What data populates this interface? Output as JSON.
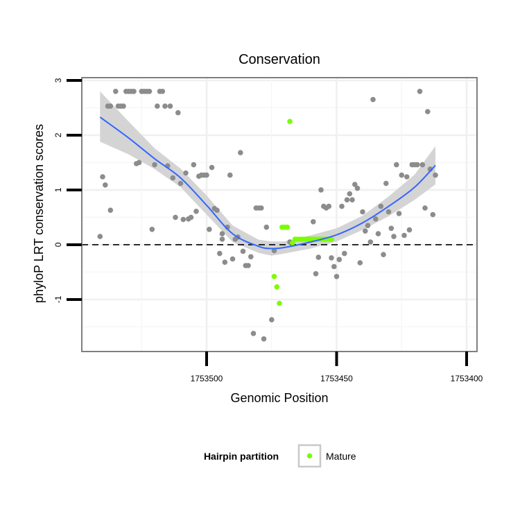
{
  "chart_data": {
    "type": "scatter",
    "title": "Conservation",
    "xlabel": "Genomic Position",
    "ylabel": "phyloP LRT conservation scores",
    "x_reversed": true,
    "xlim": [
      1753548,
      1753396
    ],
    "ylim": [
      -1.95,
      3.05
    ],
    "x_ticks": [
      {
        "value": 1753500,
        "label": "1753500"
      },
      {
        "value": 1753450,
        "label": "1753450"
      },
      {
        "value": 1753400,
        "label": "1753400"
      }
    ],
    "y_ticks": [
      {
        "value": 3,
        "label": "3"
      },
      {
        "value": 2,
        "label": "2"
      },
      {
        "value": 1,
        "label": "1"
      },
      {
        "value": 0,
        "label": "0"
      },
      {
        "value": -1,
        "label": "-1"
      }
    ],
    "grid": true,
    "reference_line": {
      "y": 0,
      "style": "dashed"
    },
    "legend": {
      "title": "Hairpin partition",
      "position": "bottom",
      "entries": [
        {
          "label": "Mature",
          "color": "#7cfc00"
        }
      ]
    },
    "colors": {
      "other": "#8c8c8c",
      "mature": "#7cfc00",
      "smooth": "#3366ff",
      "ribbon": "#d4d4d4",
      "panel_border": "#7f7f7f"
    },
    "series": [
      {
        "color": "#8c8c8c",
        "points": [
          [
            1753541,
            0.15
          ],
          [
            1753540,
            1.24
          ],
          [
            1753539,
            1.09
          ],
          [
            1753538,
            2.53
          ],
          [
            1753537,
            0.63
          ],
          [
            1753537,
            2.53
          ],
          [
            1753535,
            2.8
          ],
          [
            1753534,
            2.53
          ],
          [
            1753533,
            2.53
          ],
          [
            1753532,
            2.53
          ],
          [
            1753531,
            2.8
          ],
          [
            1753530,
            2.8
          ],
          [
            1753529,
            2.8
          ],
          [
            1753528,
            2.8
          ],
          [
            1753527,
            1.48
          ],
          [
            1753526,
            1.5
          ],
          [
            1753525,
            2.8
          ],
          [
            1753524,
            2.8
          ],
          [
            1753523,
            2.8
          ],
          [
            1753522,
            2.8
          ],
          [
            1753521,
            0.28
          ],
          [
            1753520,
            1.46
          ],
          [
            1753519,
            2.53
          ],
          [
            1753518,
            2.8
          ],
          [
            1753517,
            2.8
          ],
          [
            1753516,
            2.53
          ],
          [
            1753515,
            1.44
          ],
          [
            1753514,
            2.53
          ],
          [
            1753513,
            1.22
          ],
          [
            1753512,
            0.5
          ],
          [
            1753511,
            2.41
          ],
          [
            1753510,
            1.12
          ],
          [
            1753509,
            0.46
          ],
          [
            1753508,
            1.31
          ],
          [
            1753507,
            0.47
          ],
          [
            1753506,
            0.5
          ],
          [
            1753505,
            1.46
          ],
          [
            1753504,
            0.61
          ],
          [
            1753503,
            1.25
          ],
          [
            1753502,
            1.27
          ],
          [
            1753501,
            1.27
          ],
          [
            1753500,
            1.27
          ],
          [
            1753499,
            0.28
          ],
          [
            1753498,
            1.41
          ],
          [
            1753497,
            0.66
          ],
          [
            1753496,
            0.63
          ],
          [
            1753495,
            -0.16
          ],
          [
            1753494,
            0.2
          ],
          [
            1753494,
            0.1
          ],
          [
            1753493,
            -0.32
          ],
          [
            1753492,
            0.32
          ],
          [
            1753491,
            1.27
          ],
          [
            1753490,
            -0.26
          ],
          [
            1753489,
            0.1
          ],
          [
            1753488,
            0.14
          ],
          [
            1753487,
            1.68
          ],
          [
            1753486,
            -0.12
          ],
          [
            1753485,
            -0.38
          ],
          [
            1753484,
            -0.38
          ],
          [
            1753483,
            -0.22
          ],
          [
            1753482,
            -1.62
          ],
          [
            1753481,
            0.67
          ],
          [
            1753480,
            0.67
          ],
          [
            1753479,
            0.67
          ],
          [
            1753478,
            -1.72
          ],
          [
            1753477,
            0.32
          ],
          [
            1753475,
            -1.37
          ],
          [
            1753474,
            -0.11
          ],
          [
            1753468,
            0.05
          ],
          [
            1753461,
            0.1
          ],
          [
            1753459,
            0.42
          ],
          [
            1753458,
            -0.53
          ],
          [
            1753457,
            -0.23
          ],
          [
            1753456,
            1.0
          ],
          [
            1753455,
            0.7
          ],
          [
            1753454,
            0.67
          ],
          [
            1753453,
            0.7
          ],
          [
            1753452,
            -0.24
          ],
          [
            1753451,
            -0.4
          ],
          [
            1753450,
            -0.58
          ],
          [
            1753449,
            -0.27
          ],
          [
            1753448,
            0.7
          ],
          [
            1753447,
            -0.16
          ],
          [
            1753446,
            0.82
          ],
          [
            1753445,
            0.93
          ],
          [
            1753444,
            0.82
          ],
          [
            1753443,
            1.1
          ],
          [
            1753442,
            1.03
          ],
          [
            1753441,
            -0.33
          ],
          [
            1753440,
            0.6
          ],
          [
            1753439,
            0.25
          ],
          [
            1753438,
            0.35
          ],
          [
            1753437,
            0.05
          ],
          [
            1753436,
            2.65
          ],
          [
            1753435,
            0.47
          ],
          [
            1753434,
            0.2
          ],
          [
            1753433,
            0.7
          ],
          [
            1753432,
            -0.18
          ],
          [
            1753431,
            1.12
          ],
          [
            1753430,
            0.6
          ],
          [
            1753429,
            0.3
          ],
          [
            1753428,
            0.15
          ],
          [
            1753427,
            1.46
          ],
          [
            1753426,
            0.57
          ],
          [
            1753425,
            1.27
          ],
          [
            1753424,
            0.17
          ],
          [
            1753423,
            1.24
          ],
          [
            1753422,
            0.27
          ],
          [
            1753421,
            1.46
          ],
          [
            1753420,
            1.46
          ],
          [
            1753419,
            1.46
          ],
          [
            1753418,
            2.8
          ],
          [
            1753417,
            1.46
          ],
          [
            1753416,
            0.67
          ],
          [
            1753415,
            2.43
          ],
          [
            1753414,
            1.38
          ],
          [
            1753413,
            0.55
          ],
          [
            1753412,
            1.27
          ]
        ]
      },
      {
        "name": "Mature",
        "color": "#7cfc00",
        "points": [
          [
            1753474,
            -0.58
          ],
          [
            1753473,
            -0.77
          ],
          [
            1753472,
            -1.07
          ],
          [
            1753471,
            0.32
          ],
          [
            1753470,
            0.32
          ],
          [
            1753469,
            0.32
          ],
          [
            1753468,
            2.25
          ],
          [
            1753467,
            0.03
          ],
          [
            1753466,
            0.1
          ],
          [
            1753465,
            0.1
          ],
          [
            1753464,
            0.1
          ],
          [
            1753463,
            0.1
          ],
          [
            1753462,
            0.1
          ],
          [
            1753461,
            0.1
          ],
          [
            1753460,
            0.1
          ],
          [
            1753459,
            0.1
          ],
          [
            1753458,
            0.1
          ],
          [
            1753457,
            0.1
          ],
          [
            1753456,
            0.1
          ],
          [
            1753455,
            0.1
          ],
          [
            1753454,
            0.1
          ],
          [
            1753453,
            0.1
          ],
          [
            1753452,
            0.1
          ]
        ]
      }
    ],
    "smooth": {
      "x": [
        1753541,
        1753530,
        1753520,
        1753510,
        1753500,
        1753490,
        1753480,
        1753475,
        1753470,
        1753460,
        1753450,
        1753440,
        1753430,
        1753420,
        1753412
      ],
      "y": [
        2.33,
        1.95,
        1.57,
        1.22,
        0.72,
        0.2,
        -0.03,
        -0.07,
        -0.05,
        0.05,
        0.18,
        0.4,
        0.7,
        1.05,
        1.45
      ],
      "lower": [
        1.88,
        1.65,
        1.38,
        1.05,
        0.55,
        0.05,
        -0.15,
        -0.2,
        -0.16,
        -0.07,
        0.06,
        0.27,
        0.52,
        0.82,
        1.1
      ],
      "upper": [
        2.8,
        2.25,
        1.76,
        1.39,
        0.9,
        0.35,
        0.09,
        0.06,
        0.06,
        0.17,
        0.3,
        0.53,
        0.88,
        1.28,
        1.8
      ]
    }
  }
}
